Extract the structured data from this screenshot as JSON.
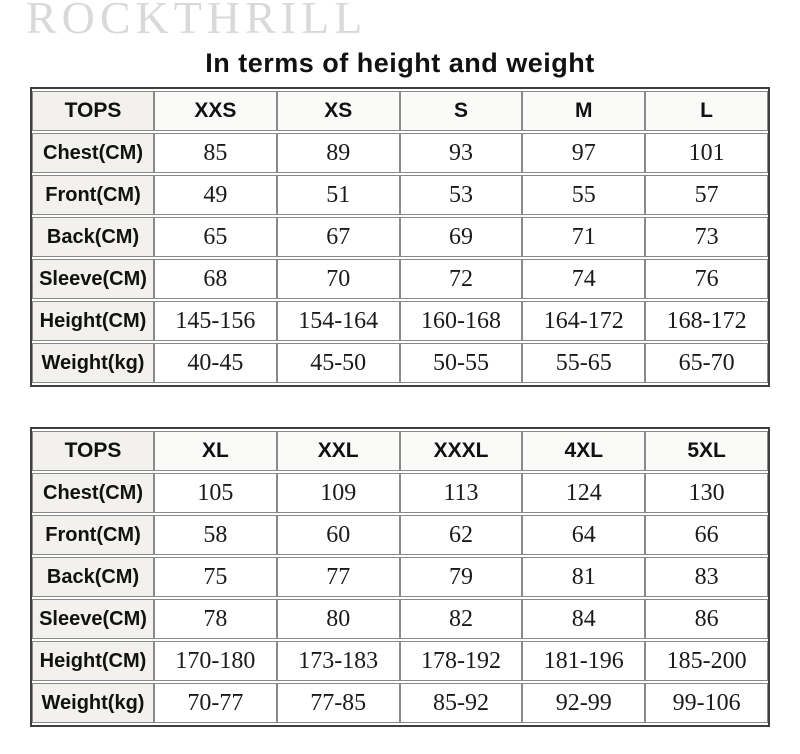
{
  "brand": "ROCKTHRILL",
  "title": "In terms of height and weight",
  "colors": {
    "brand_text": "#d9d9d9",
    "title_text": "#111111",
    "outer_border": "#3f3f3f",
    "inner_border": "#8a8a8a",
    "label_cell_bg": "#f3f1ed",
    "header_cell_bg": "#fafaf9",
    "value_cell_bg": "#ffffff"
  },
  "tables": [
    {
      "name": "sizes-xxs-to-l",
      "header": [
        "TOPS",
        "XXS",
        "XS",
        "S",
        "M",
        "L"
      ],
      "rows": [
        {
          "label": "Chest(CM)",
          "values": [
            "85",
            "89",
            "93",
            "97",
            "101"
          ]
        },
        {
          "label": "Front(CM)",
          "values": [
            "49",
            "51",
            "53",
            "55",
            "57"
          ]
        },
        {
          "label": "Back(CM)",
          "values": [
            "65",
            "67",
            "69",
            "71",
            "73"
          ]
        },
        {
          "label": "Sleeve(CM)",
          "values": [
            "68",
            "70",
            "72",
            "74",
            "76"
          ]
        },
        {
          "label": "Height(CM)",
          "values": [
            "145-156",
            "154-164",
            "160-168",
            "164-172",
            "168-172"
          ]
        },
        {
          "label": "Weight(kg)",
          "values": [
            "40-45",
            "45-50",
            "50-55",
            "55-65",
            "65-70"
          ]
        }
      ]
    },
    {
      "name": "sizes-xl-to-5xl",
      "header": [
        "TOPS",
        "XL",
        "XXL",
        "XXXL",
        "4XL",
        "5XL"
      ],
      "rows": [
        {
          "label": "Chest(CM)",
          "values": [
            "105",
            "109",
            "113",
            "124",
            "130"
          ]
        },
        {
          "label": "Front(CM)",
          "values": [
            "58",
            "60",
            "62",
            "64",
            "66"
          ]
        },
        {
          "label": "Back(CM)",
          "values": [
            "75",
            "77",
            "79",
            "81",
            "83"
          ]
        },
        {
          "label": "Sleeve(CM)",
          "values": [
            "78",
            "80",
            "82",
            "84",
            "86"
          ]
        },
        {
          "label": "Height(CM)",
          "values": [
            "170-180",
            "173-183",
            "178-192",
            "181-196",
            "185-200"
          ]
        },
        {
          "label": "Weight(kg)",
          "values": [
            "70-77",
            "77-85",
            "85-92",
            "92-99",
            "99-106"
          ]
        }
      ]
    }
  ]
}
